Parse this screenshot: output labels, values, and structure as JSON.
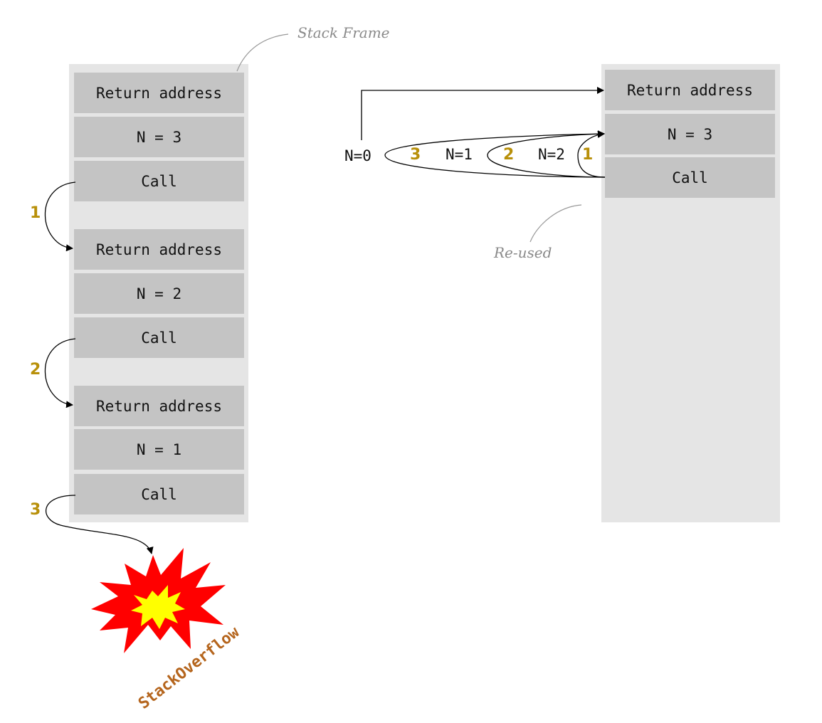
{
  "left_stack": {
    "frames": [
      {
        "return_address": "Return address",
        "n": "N = 3",
        "call": "Call"
      },
      {
        "return_address": "Return address",
        "n": "N = 2",
        "call": "Call"
      },
      {
        "return_address": "Return address",
        "n": "N = 1",
        "call": "Call"
      }
    ],
    "steps": [
      "1",
      "2",
      "3"
    ],
    "overflow_label": "StackOverflow"
  },
  "right_stack": {
    "return_address": "Return address",
    "n": "N = 3",
    "call": "Call"
  },
  "loop": {
    "n0": "N=0",
    "n1": "N=1",
    "n2": "N=2",
    "steps": [
      "1",
      "2",
      "3"
    ]
  },
  "notes": {
    "stack_frame": "Stack Frame",
    "reused": "Re-used"
  },
  "colors": {
    "step_number": "#b8900a",
    "overflow_text": "#b5651d",
    "burst_outer": "#ff0000",
    "burst_inner": "#ffff00"
  }
}
